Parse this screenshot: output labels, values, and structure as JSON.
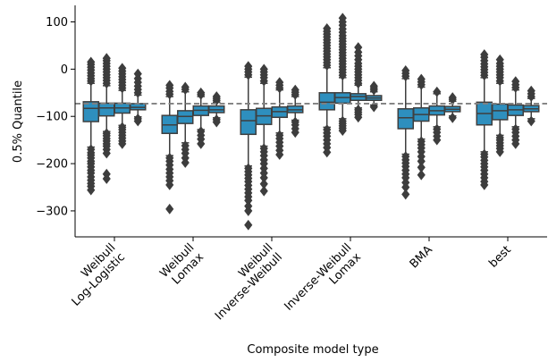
{
  "chart_data": {
    "type": "box",
    "xlabel": "Composite model type",
    "ylabel": "0.5% Quantile",
    "ylim": [
      -355,
      135
    ],
    "yticks": [
      100,
      0,
      -100,
      -200,
      -300
    ],
    "ytick_labels": [
      "100",
      "0",
      "−100",
      "−200",
      "−300"
    ],
    "reference_line": -73,
    "grid": false,
    "box_color": "#2e8fbe",
    "categories": [
      {
        "label_lines": [
          "Weibull",
          "Log-Logistic"
        ],
        "boxes": [
          {
            "q1": -111,
            "median": -83,
            "q3": -69,
            "whisker_low": -165,
            "whisker_high": -30,
            "outliers_low": [
              -170,
              -177,
              -182,
              -188,
              -195,
              -200,
              -207,
              -214,
              -220,
              -228,
              -235,
              -242,
              -248,
              -256
            ],
            "outliers_high": [
              -25,
              -20,
              -14,
              -8,
              -2,
              4,
              10,
              15
            ]
          },
          {
            "q1": -99,
            "median": -82,
            "q3": -72,
            "whisker_low": -132,
            "whisker_high": -35,
            "outliers_low": [
              -136,
              -141,
              -147,
              -152,
              -158,
              -163,
              -170,
              -178,
              -222,
              -232
            ],
            "outliers_high": [
              -30,
              -24,
              -18,
              -12,
              -6,
              0,
              6,
              12,
              18,
              23
            ]
          },
          {
            "q1": -93,
            "median": -82,
            "q3": -72,
            "whisker_low": -119,
            "whisker_high": -45,
            "outliers_low": [
              -123,
              -128,
              -134,
              -140,
              -146,
              -152,
              -158
            ],
            "outliers_high": [
              -40,
              -34,
              -28,
              -22,
              -16,
              -10,
              -4,
              2
            ]
          },
          {
            "q1": -86,
            "median": -81,
            "q3": -73,
            "whisker_low": -101,
            "whisker_high": -55,
            "outliers_low": [
              -105,
              -110
            ],
            "outliers_high": [
              -50,
              -43,
              -36,
              -28,
              -20,
              -10
            ]
          }
        ]
      },
      {
        "label_lines": [
          "Weibull",
          "Lomax"
        ],
        "boxes": [
          {
            "q1": -136,
            "median": -118,
            "q3": -98,
            "whisker_low": -183,
            "whisker_high": -58,
            "outliers_low": [
              -188,
              -195,
              -203,
              -212,
              -220,
              -228,
              -236,
              -245,
              -296
            ],
            "outliers_high": [
              -53,
              -47,
              -40,
              -34
            ]
          },
          {
            "q1": -115,
            "median": -100,
            "q3": -88,
            "whisker_low": -156,
            "whisker_high": -48,
            "outliers_low": [
              -162,
              -170,
              -178,
              -188,
              -198
            ],
            "outliers_high": [
              -43,
              -38
            ]
          },
          {
            "q1": -98,
            "median": -87,
            "q3": -78,
            "whisker_low": -128,
            "whisker_high": -58,
            "outliers_low": [
              -132,
              -140,
              -148,
              -158
            ],
            "outliers_high": [
              -54,
              -50
            ]
          },
          {
            "q1": -92,
            "median": -86,
            "q3": -78,
            "whisker_low": -103,
            "whisker_high": -70,
            "outliers_low": [
              -107,
              -112
            ],
            "outliers_high": [
              -66,
              -62,
              -58
            ]
          }
        ]
      },
      {
        "label_lines": [
          "Weibull",
          "Inverse-Weibull"
        ],
        "boxes": [
          {
            "q1": -138,
            "median": -109,
            "q3": -86,
            "whisker_low": -205,
            "whisker_high": -17,
            "outliers_low": [
              -210,
              -217,
              -224,
              -231,
              -238,
              -246,
              -254,
              -262,
              -270,
              -278,
              -290,
              -300,
              -330
            ],
            "outliers_high": [
              -12,
              -6,
              0,
              6
            ]
          },
          {
            "q1": -117,
            "median": -99,
            "q3": -83,
            "whisker_low": -163,
            "whisker_high": -30,
            "outliers_low": [
              -168,
              -175,
              -183,
              -192,
              -200,
              -210,
              -220,
              -230,
              -243,
              -258
            ],
            "outliers_high": [
              -25,
              -18,
              -12,
              -6,
              0
            ]
          },
          {
            "q1": -102,
            "median": -90,
            "q3": -80,
            "whisker_low": -135,
            "whisker_high": -44,
            "outliers_low": [
              -140,
              -147,
              -155,
              -163,
              -172,
              -181
            ],
            "outliers_high": [
              -40,
              -34,
              -28
            ]
          },
          {
            "q1": -92,
            "median": -86,
            "q3": -78,
            "whisker_low": -108,
            "whisker_high": -58,
            "outliers_low": [
              -112,
              -118,
              -126,
              -134
            ],
            "outliers_high": [
              -54,
              -49,
              -44
            ]
          }
        ]
      },
      {
        "label_lines": [
          "Inverse-Weibull",
          "Lomax"
        ],
        "boxes": [
          {
            "q1": -86,
            "median": -70,
            "q3": -50,
            "whisker_low": -123,
            "whisker_high": 3,
            "outliers_low": [
              -128,
              -135,
              -142,
              -150,
              -158,
              -166,
              -176
            ],
            "outliers_high": [
              8,
              14,
              20,
              26,
              32,
              38,
              44,
              50,
              56,
              62,
              68,
              74,
              80,
              86
            ]
          },
          {
            "q1": -72,
            "median": -60,
            "q3": -50,
            "whisker_low": -105,
            "whisker_high": -18,
            "outliers_low": [
              -110,
              -115,
              -120,
              -125,
              -130
            ],
            "outliers_high": [
              -13,
              -7,
              -1,
              5,
              11,
              17,
              23,
              29,
              35,
              41,
              47,
              53,
              59,
              65,
              71,
              78,
              85,
              93,
              100,
              108
            ]
          },
          {
            "q1": -66,
            "median": -58,
            "q3": -52,
            "whisker_low": -82,
            "whisker_high": -34,
            "outliers_low": [
              -86,
              -91,
              -96,
              -102
            ],
            "outliers_high": [
              -30,
              -24,
              -18,
              -12,
              -6,
              0,
              6,
              12,
              20,
              28,
              36,
              46
            ]
          },
          {
            "q1": -66,
            "median": -61,
            "q3": -56,
            "whisker_low": -76,
            "whisker_high": -48,
            "outliers_low": [
              -80
            ],
            "outliers_high": [
              -44,
              -40,
              -36
            ]
          }
        ]
      },
      {
        "label_lines": [
          "BMA"
        ],
        "boxes": [
          {
            "q1": -126,
            "median": -103,
            "q3": -84,
            "whisker_low": -180,
            "whisker_high": -20,
            "outliers_low": [
              -185,
              -192,
              -199,
              -206,
              -214,
              -222,
              -230,
              -240,
              -250,
              -265
            ],
            "outliers_high": [
              -15,
              -9,
              -3
            ]
          },
          {
            "q1": -110,
            "median": -96,
            "q3": -82,
            "whisker_low": -148,
            "whisker_high": -38,
            "outliers_low": [
              -153,
              -160,
              -167,
              -175,
              -185,
              -195,
              -208,
              -224
            ],
            "outliers_high": [
              -33,
              -27,
              -21
            ]
          },
          {
            "q1": -97,
            "median": -88,
            "q3": -78,
            "whisker_low": -122,
            "whisker_high": -52,
            "outliers_low": [
              -127,
              -134,
              -142,
              -150
            ],
            "outliers_high": [
              -48
            ]
          },
          {
            "q1": -90,
            "median": -85,
            "q3": -79,
            "whisker_low": -99,
            "whisker_high": -68,
            "outliers_low": [
              -103
            ],
            "outliers_high": [
              -64,
              -60
            ]
          }
        ]
      },
      {
        "label_lines": [
          "best"
        ],
        "boxes": [
          {
            "q1": -118,
            "median": -94,
            "q3": -70,
            "whisker_low": -175,
            "whisker_high": -18,
            "outliers_low": [
              -180,
              -186,
              -193,
              -200,
              -207,
              -214,
              -222,
              -230,
              -238,
              -245
            ],
            "outliers_high": [
              -13,
              -7,
              -1,
              5,
              11,
              18,
              25,
              31
            ]
          },
          {
            "q1": -107,
            "median": -88,
            "q3": -74,
            "whisker_low": -140,
            "whisker_high": -30,
            "outliers_low": [
              -145,
              -150,
              -156,
              -162,
              -168,
              -175
            ],
            "outliers_high": [
              -25,
              -18,
              -12,
              -6,
              0,
              6,
              12,
              20
            ]
          },
          {
            "q1": -98,
            "median": -86,
            "q3": -76,
            "whisker_low": -122,
            "whisker_high": -44,
            "outliers_low": [
              -127,
              -134,
              -142,
              -150,
              -158
            ],
            "outliers_high": [
              -39,
              -33,
              -26
            ]
          },
          {
            "q1": -90,
            "median": -84,
            "q3": -77,
            "whisker_low": -105,
            "whisker_high": -62,
            "outliers_low": [
              -110
            ],
            "outliers_high": [
              -58,
              -52,
              -46
            ]
          }
        ]
      }
    ]
  }
}
